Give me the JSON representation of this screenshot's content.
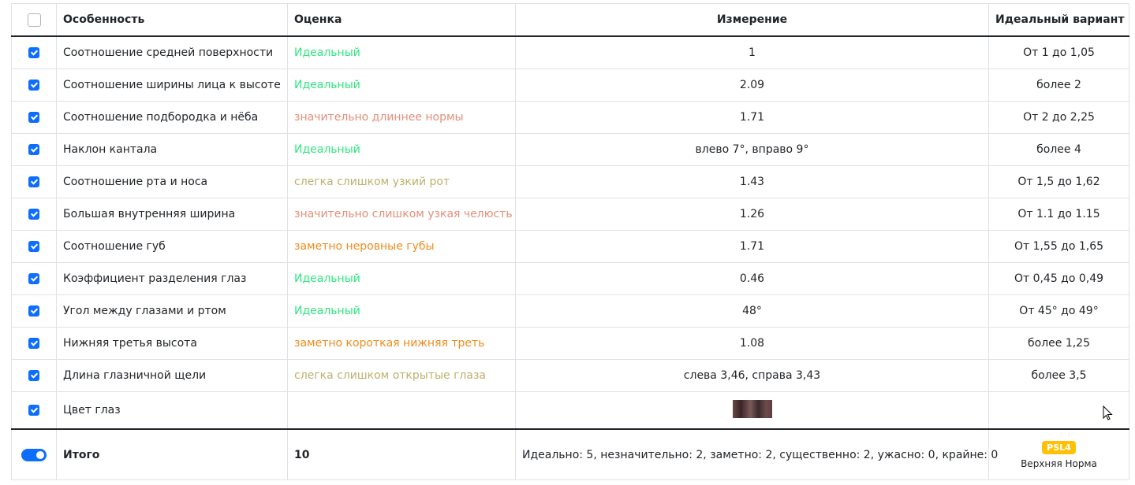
{
  "colors": {
    "ideal": "#2ee880",
    "significant": "#e38f7a",
    "slight": "#bdb06c",
    "noticeable": "#f08c1c",
    "accent": "#0d6efd",
    "badge": "#ffc107"
  },
  "header": {
    "select_all_checked": false,
    "feature": "Особенность",
    "rating": "Оценка",
    "measurement": "Измерение",
    "ideal": "Идеальный вариант"
  },
  "rows": [
    {
      "feature": "Соотношение средней поверхности",
      "rating": "Идеальный",
      "level": "ideal",
      "measurement": "1",
      "ideal": "От 1 до 1,05"
    },
    {
      "feature": "Соотношение ширины лица к высоте",
      "rating": "Идеальный",
      "level": "ideal",
      "measurement": "2.09",
      "ideal": "более 2"
    },
    {
      "feature": "Соотношение подбородка и нёба",
      "rating": "значительно длиннее нормы",
      "level": "significant",
      "measurement": "1.71",
      "ideal": "От 2 до 2,25"
    },
    {
      "feature": "Наклон кантала",
      "rating": "Идеальный",
      "level": "ideal",
      "measurement": "влево 7°, вправо 9°",
      "ideal": "более 4"
    },
    {
      "feature": "Соотношение рта и носа",
      "rating": "слегка слишком узкий рот",
      "level": "slight",
      "measurement": "1.43",
      "ideal": "От 1,5 до 1,62"
    },
    {
      "feature": "Большая внутренняя ширина",
      "rating": "значительно слишком узкая челюсть",
      "level": "significant",
      "measurement": "1.26",
      "ideal": "От 1.1 до 1.15"
    },
    {
      "feature": "Соотношение губ",
      "rating": "заметно неровные губы",
      "level": "noticeable",
      "measurement": "1.71",
      "ideal": "От 1,55 до 1,65"
    },
    {
      "feature": "Коэффициент разделения глаз",
      "rating": "Идеальный",
      "level": "ideal",
      "measurement": "0.46",
      "ideal": "От 0,45 до 0,49"
    },
    {
      "feature": "Угол между глазами и ртом",
      "rating": "Идеальный",
      "level": "ideal",
      "measurement": "48°",
      "ideal": "От 45° до 49°"
    },
    {
      "feature": "Нижняя третья высота",
      "rating": "заметно короткая нижняя треть",
      "level": "noticeable",
      "measurement": "1.08",
      "ideal": "более 1,25"
    },
    {
      "feature": "Длина глазничной щели",
      "rating": "слегка слишком открытые глаза",
      "level": "slight",
      "measurement": "слева 3,46, справа 3,43",
      "ideal": "более 3,5"
    }
  ],
  "eye_row": {
    "feature": "Цвет глаз"
  },
  "footer": {
    "label": "Итого",
    "score": "10",
    "summary": "Идеально: 5, незначительно: 2, заметно: 2, существенно: 2, ужасно: 0, крайне: 0",
    "badge": "PSL4",
    "category": "Верхняя Норма"
  }
}
